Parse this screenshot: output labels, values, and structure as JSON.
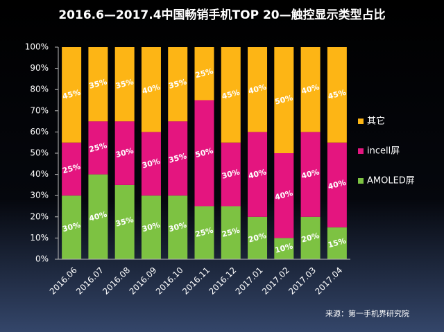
{
  "chart_data": {
    "type": "stacked_bar",
    "title": "2016.6—2017.4中国畅销手机TOP 20—触控显示类型占比",
    "source": "来源：第一手机界研究院",
    "categories": [
      "2016.06",
      "2016.07",
      "2016.08",
      "2016.09",
      "2016.10",
      "2016.11",
      "2016.12",
      "2017.01",
      "2017.02",
      "2017.03",
      "2017.04"
    ],
    "series": [
      {
        "name": "AMOLED屏",
        "color": "#7dc242",
        "values": [
          30,
          40,
          35,
          30,
          30,
          25,
          25,
          20,
          10,
          20,
          15
        ],
        "value_labels": [
          "30%",
          "40%",
          "35%",
          "30%",
          "30%",
          "25%",
          "25%",
          "20%",
          "10%",
          "20%",
          "15%"
        ]
      },
      {
        "name": "incell屏",
        "color": "#e4157f",
        "values": [
          25,
          25,
          30,
          30,
          35,
          50,
          30,
          40,
          40,
          40,
          40
        ],
        "value_labels": [
          "25%",
          "25%",
          "30%",
          "30%",
          "35%",
          "50%",
          "30%",
          "40%",
          "40%",
          "40%",
          "40%"
        ]
      },
      {
        "name": "其它",
        "color": "#fdb515",
        "values": [
          45,
          35,
          35,
          40,
          35,
          25,
          45,
          40,
          50,
          40,
          45
        ],
        "value_labels": [
          "45%",
          "35%",
          "35%",
          "40%",
          "35%",
          "25%",
          "45%",
          "40%",
          "50%",
          "40%",
          "45%"
        ]
      }
    ],
    "ylim": [
      0,
      100
    ],
    "yticks": [
      {
        "value": 0,
        "label": "0%"
      },
      {
        "value": 10,
        "label": "10%"
      },
      {
        "value": 20,
        "label": "20%"
      },
      {
        "value": 30,
        "label": "30%"
      },
      {
        "value": 40,
        "label": "40%"
      },
      {
        "value": 50,
        "label": "50%"
      },
      {
        "value": 60,
        "label": "60%"
      },
      {
        "value": 70,
        "label": "70%"
      },
      {
        "value": 80,
        "label": "80%"
      },
      {
        "value": 90,
        "label": "90%"
      },
      {
        "value": 100,
        "label": "100%"
      }
    ],
    "grid": false,
    "legend": "right"
  }
}
